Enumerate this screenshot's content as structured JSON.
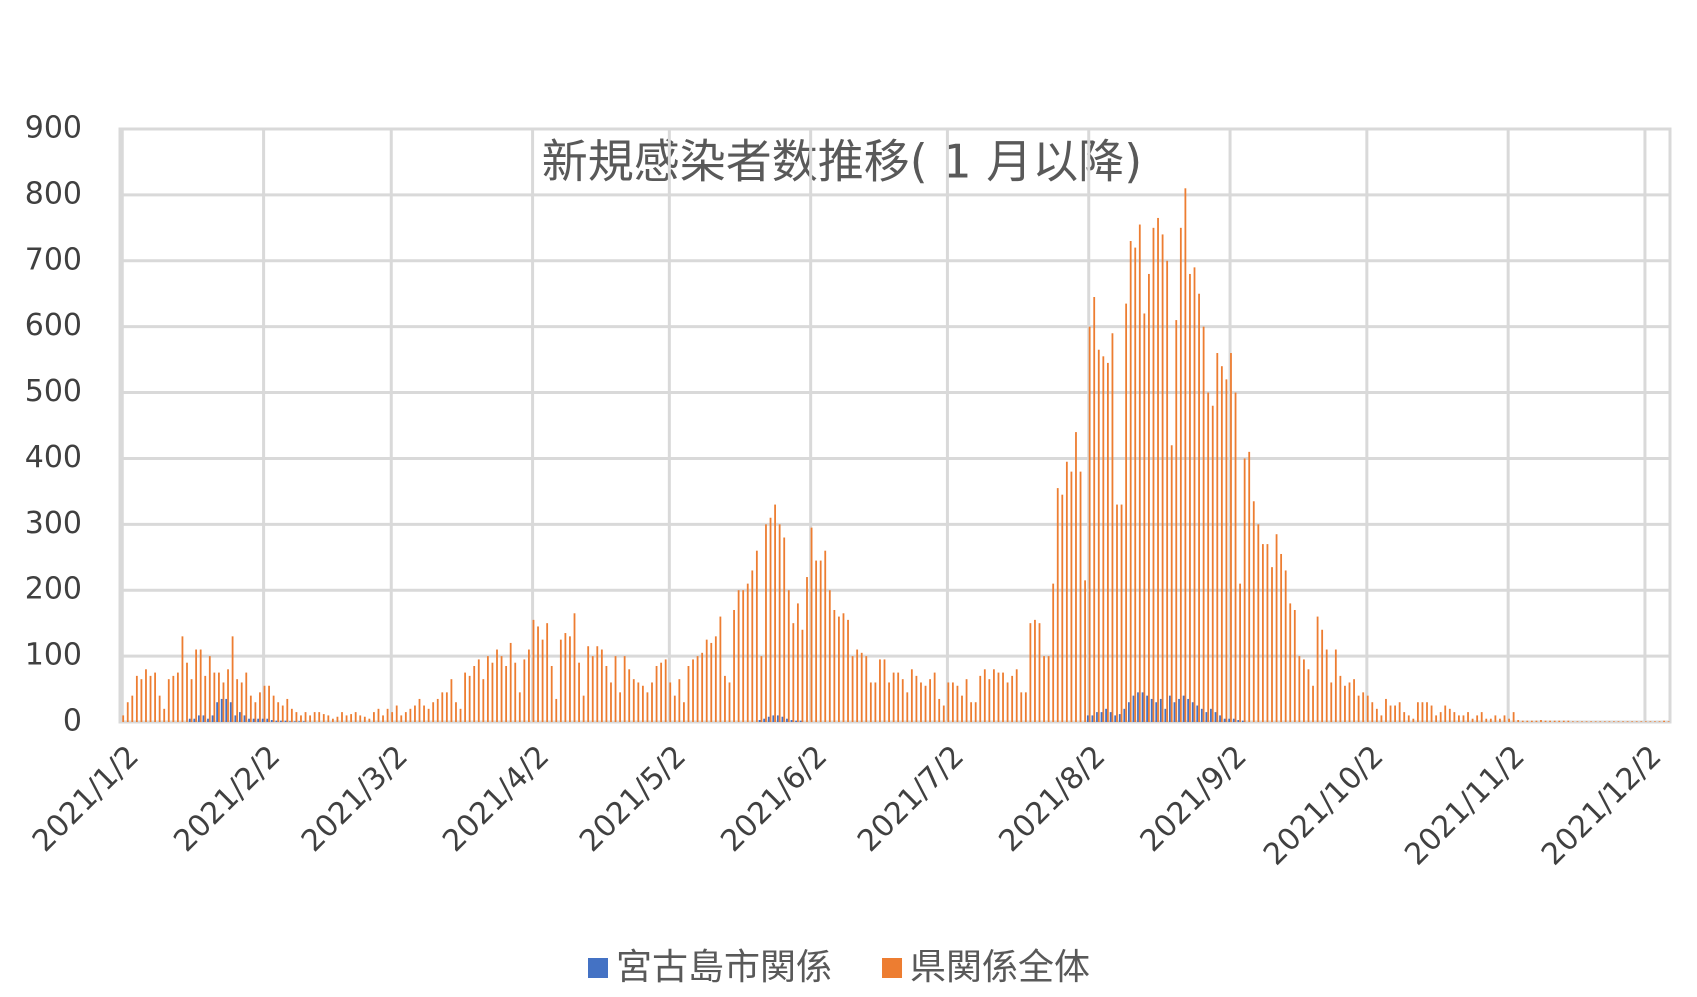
{
  "chart_data": {
    "type": "bar",
    "title": "新規感染者数推移( 1 月以降)",
    "categories": [
      "2021/1/2",
      null,
      null,
      null,
      null,
      null,
      null,
      null,
      null,
      null,
      null,
      null,
      null,
      null,
      null,
      null,
      null,
      null,
      null,
      null,
      null,
      null,
      null,
      null,
      null,
      null,
      null,
      null,
      null,
      null,
      null,
      "2021/2/2",
      null,
      null,
      null,
      null,
      null,
      null,
      null,
      null,
      null,
      null,
      null,
      null,
      null,
      null,
      null,
      null,
      null,
      null,
      null,
      null,
      null,
      null,
      null,
      null,
      null,
      null,
      null,
      "2021/3/2",
      null,
      null,
      null,
      null,
      null,
      null,
      null,
      null,
      null,
      null,
      null,
      null,
      null,
      null,
      null,
      null,
      null,
      null,
      null,
      null,
      null,
      null,
      null,
      null,
      null,
      null,
      null,
      null,
      null,
      null,
      "2021/4/2",
      null,
      null,
      null,
      null,
      null,
      null,
      null,
      null,
      null,
      null,
      null,
      null,
      null,
      null,
      null,
      null,
      null,
      null,
      null,
      null,
      null,
      null,
      null,
      null,
      null,
      null,
      null,
      null,
      null,
      "2021/5/2",
      null,
      null,
      null,
      null,
      null,
      null,
      null,
      null,
      null,
      null,
      null,
      null,
      null,
      null,
      null,
      null,
      null,
      null,
      null,
      null,
      null,
      null,
      null,
      null,
      null,
      null,
      null,
      null,
      null,
      null,
      "2021/6/2",
      null,
      null,
      null,
      null,
      null,
      null,
      null,
      null,
      null,
      null,
      null,
      null,
      null,
      null,
      null,
      null,
      null,
      null,
      null,
      null,
      null,
      null,
      null,
      null,
      null,
      null,
      null,
      null,
      null,
      "2021/7/2",
      null,
      null,
      null,
      null,
      null,
      null,
      null,
      null,
      null,
      null,
      null,
      null,
      null,
      null,
      null,
      null,
      null,
      null,
      null,
      null,
      null,
      null,
      null,
      null,
      null,
      null,
      null,
      null,
      null,
      null,
      "2021/8/2",
      null,
      null,
      null,
      null,
      null,
      null,
      null,
      null,
      null,
      null,
      null,
      null,
      null,
      null,
      null,
      null,
      null,
      null,
      null,
      null,
      null,
      null,
      null,
      null,
      null,
      null,
      null,
      null,
      null,
      null,
      "2021/9/2",
      null,
      null,
      null,
      null,
      null,
      null,
      null,
      null,
      null,
      null,
      null,
      null,
      null,
      null,
      null,
      null,
      null,
      null,
      null,
      null,
      null,
      null,
      null,
      null,
      null,
      null,
      null,
      null,
      null,
      "2021/10/2",
      null,
      null,
      null,
      null,
      null,
      null,
      null,
      null,
      null,
      null,
      null,
      null,
      null,
      null,
      null,
      null,
      null,
      null,
      null,
      null,
      null,
      null,
      null,
      null,
      null,
      null,
      null,
      null,
      null,
      null,
      "2021/11/2",
      null,
      null,
      null,
      null,
      null,
      null,
      null,
      null,
      null,
      null,
      null,
      null,
      null,
      null,
      null,
      null,
      null,
      null,
      null,
      null,
      null,
      null,
      null,
      null,
      null,
      null,
      null,
      null,
      null,
      "2021/12/2",
      null,
      null,
      null,
      null,
      null
    ],
    "series": [
      {
        "name": "宮古島市関係",
        "color": "#4472c4",
        "values": [
          0,
          0,
          0,
          0,
          0,
          0,
          0,
          0,
          0,
          0,
          0,
          0,
          0,
          0,
          0,
          5,
          5,
          10,
          10,
          5,
          10,
          30,
          35,
          35,
          30,
          10,
          15,
          10,
          5,
          5,
          5,
          5,
          5,
          3,
          2,
          2,
          2,
          1,
          1,
          1,
          1,
          0,
          0,
          0,
          0,
          0,
          0,
          0,
          0,
          0,
          0,
          0,
          0,
          0,
          0,
          0,
          0,
          0,
          0,
          0,
          0,
          0,
          0,
          0,
          0,
          0,
          0,
          0,
          0,
          0,
          0,
          0,
          0,
          0,
          0,
          0,
          0,
          0,
          0,
          0,
          0,
          0,
          0,
          0,
          0,
          0,
          0,
          0,
          0,
          0,
          0,
          0,
          0,
          0,
          0,
          0,
          0,
          0,
          0,
          0,
          0,
          0,
          0,
          0,
          0,
          0,
          0,
          0,
          0,
          0,
          0,
          0,
          0,
          0,
          0,
          0,
          0,
          0,
          0,
          0,
          0,
          0,
          0,
          0,
          0,
          0,
          0,
          0,
          0,
          0,
          0,
          0,
          0,
          0,
          0,
          0,
          0,
          0,
          0,
          0,
          3,
          5,
          8,
          10,
          10,
          8,
          5,
          3,
          2,
          2,
          0,
          0,
          0,
          0,
          0,
          0,
          0,
          0,
          0,
          0,
          0,
          0,
          0,
          0,
          0,
          0,
          0,
          0,
          0,
          0,
          0,
          0,
          0,
          0,
          0,
          0,
          0,
          0,
          0,
          0,
          0,
          0,
          0,
          0,
          0,
          0,
          0,
          0,
          0,
          0,
          0,
          0,
          0,
          0,
          0,
          0,
          0,
          0,
          0,
          0,
          0,
          0,
          0,
          0,
          0,
          0,
          0,
          0,
          0,
          0,
          0,
          0,
          10,
          10,
          15,
          15,
          20,
          15,
          10,
          12,
          20,
          30,
          40,
          45,
          45,
          40,
          35,
          30,
          35,
          20,
          40,
          30,
          35,
          40,
          35,
          30,
          25,
          20,
          15,
          20,
          15,
          10,
          5,
          5,
          5,
          3,
          2,
          0,
          0,
          0,
          0,
          0,
          0,
          0,
          0,
          0,
          0,
          0,
          0,
          0,
          0,
          0,
          0,
          0,
          0,
          0,
          0,
          0,
          0,
          0,
          0,
          0,
          0,
          0,
          0,
          0,
          0,
          0,
          0,
          0,
          0,
          0,
          0,
          0,
          0,
          0,
          0,
          0,
          0,
          0,
          0,
          0,
          0,
          0,
          0,
          0,
          0,
          0,
          0,
          0,
          0,
          0,
          0,
          0,
          0,
          0,
          0,
          0,
          0,
          0,
          0,
          0,
          0,
          0,
          0,
          0,
          0,
          0,
          0,
          0,
          0,
          0,
          0,
          0,
          0,
          0,
          0,
          0,
          0,
          0,
          0,
          0,
          0,
          0,
          0,
          0,
          0,
          0,
          0,
          0
        ]
      },
      {
        "name": "県関係全体",
        "color": "#ed7d31",
        "values": [
          10,
          30,
          40,
          70,
          65,
          80,
          70,
          75,
          40,
          20,
          65,
          70,
          75,
          130,
          90,
          65,
          110,
          110,
          70,
          100,
          75,
          75,
          60,
          80,
          130,
          65,
          60,
          75,
          40,
          30,
          45,
          55,
          55,
          40,
          30,
          25,
          35,
          20,
          15,
          10,
          15,
          10,
          15,
          15,
          12,
          10,
          5,
          8,
          15,
          10,
          12,
          15,
          10,
          8,
          5,
          15,
          20,
          10,
          20,
          15,
          25,
          10,
          15,
          20,
          25,
          35,
          25,
          20,
          30,
          35,
          45,
          45,
          65,
          30,
          20,
          75,
          70,
          85,
          95,
          65,
          100,
          90,
          110,
          100,
          85,
          120,
          90,
          45,
          95,
          110,
          155,
          145,
          125,
          150,
          85,
          35,
          125,
          135,
          130,
          165,
          90,
          40,
          115,
          100,
          115,
          110,
          85,
          60,
          100,
          45,
          100,
          80,
          65,
          60,
          55,
          45,
          60,
          85,
          90,
          95,
          60,
          40,
          65,
          30,
          85,
          95,
          100,
          105,
          125,
          120,
          130,
          160,
          70,
          60,
          170,
          200,
          200,
          210,
          230,
          260,
          100,
          300,
          310,
          330,
          300,
          280,
          200,
          150,
          180,
          140,
          220,
          295,
          245,
          245,
          260,
          200,
          170,
          160,
          165,
          155,
          100,
          110,
          105,
          100,
          60,
          60,
          95,
          95,
          60,
          75,
          75,
          65,
          45,
          80,
          70,
          60,
          55,
          65,
          75,
          35,
          25,
          60,
          60,
          55,
          40,
          65,
          30,
          30,
          70,
          80,
          65,
          80,
          75,
          75,
          60,
          70,
          80,
          45,
          45,
          150,
          155,
          150,
          100,
          100,
          210,
          355,
          345,
          395,
          380,
          440,
          380,
          215,
          600,
          645,
          565,
          555,
          545,
          590,
          330,
          330,
          635,
          730,
          720,
          755,
          620,
          680,
          750,
          765,
          740,
          700,
          420,
          610,
          750,
          810,
          680,
          690,
          650,
          600,
          500,
          480,
          560,
          540,
          520,
          560,
          500,
          210,
          400,
          410,
          335,
          300,
          270,
          270,
          235,
          285,
          255,
          230,
          180,
          170,
          100,
          95,
          80,
          55,
          160,
          140,
          110,
          60,
          110,
          70,
          55,
          60,
          65,
          40,
          45,
          40,
          30,
          20,
          10,
          35,
          25,
          25,
          30,
          15,
          10,
          5,
          30,
          30,
          30,
          25,
          10,
          15,
          25,
          20,
          15,
          10,
          10,
          15,
          5,
          10,
          15,
          5,
          5,
          10,
          5,
          10,
          5,
          15,
          3,
          2,
          2,
          2,
          2,
          3,
          2,
          2,
          2,
          2,
          2,
          2,
          1,
          1,
          1,
          1,
          1,
          1,
          1,
          1,
          1,
          1,
          1,
          1,
          1,
          1,
          1,
          1,
          1,
          1,
          1,
          1,
          2,
          1
        ]
      }
    ],
    "ylim": [
      0,
      900
    ],
    "yticks": [
      0,
      100,
      200,
      300,
      400,
      500,
      600,
      700,
      800,
      900
    ],
    "grid": true
  }
}
